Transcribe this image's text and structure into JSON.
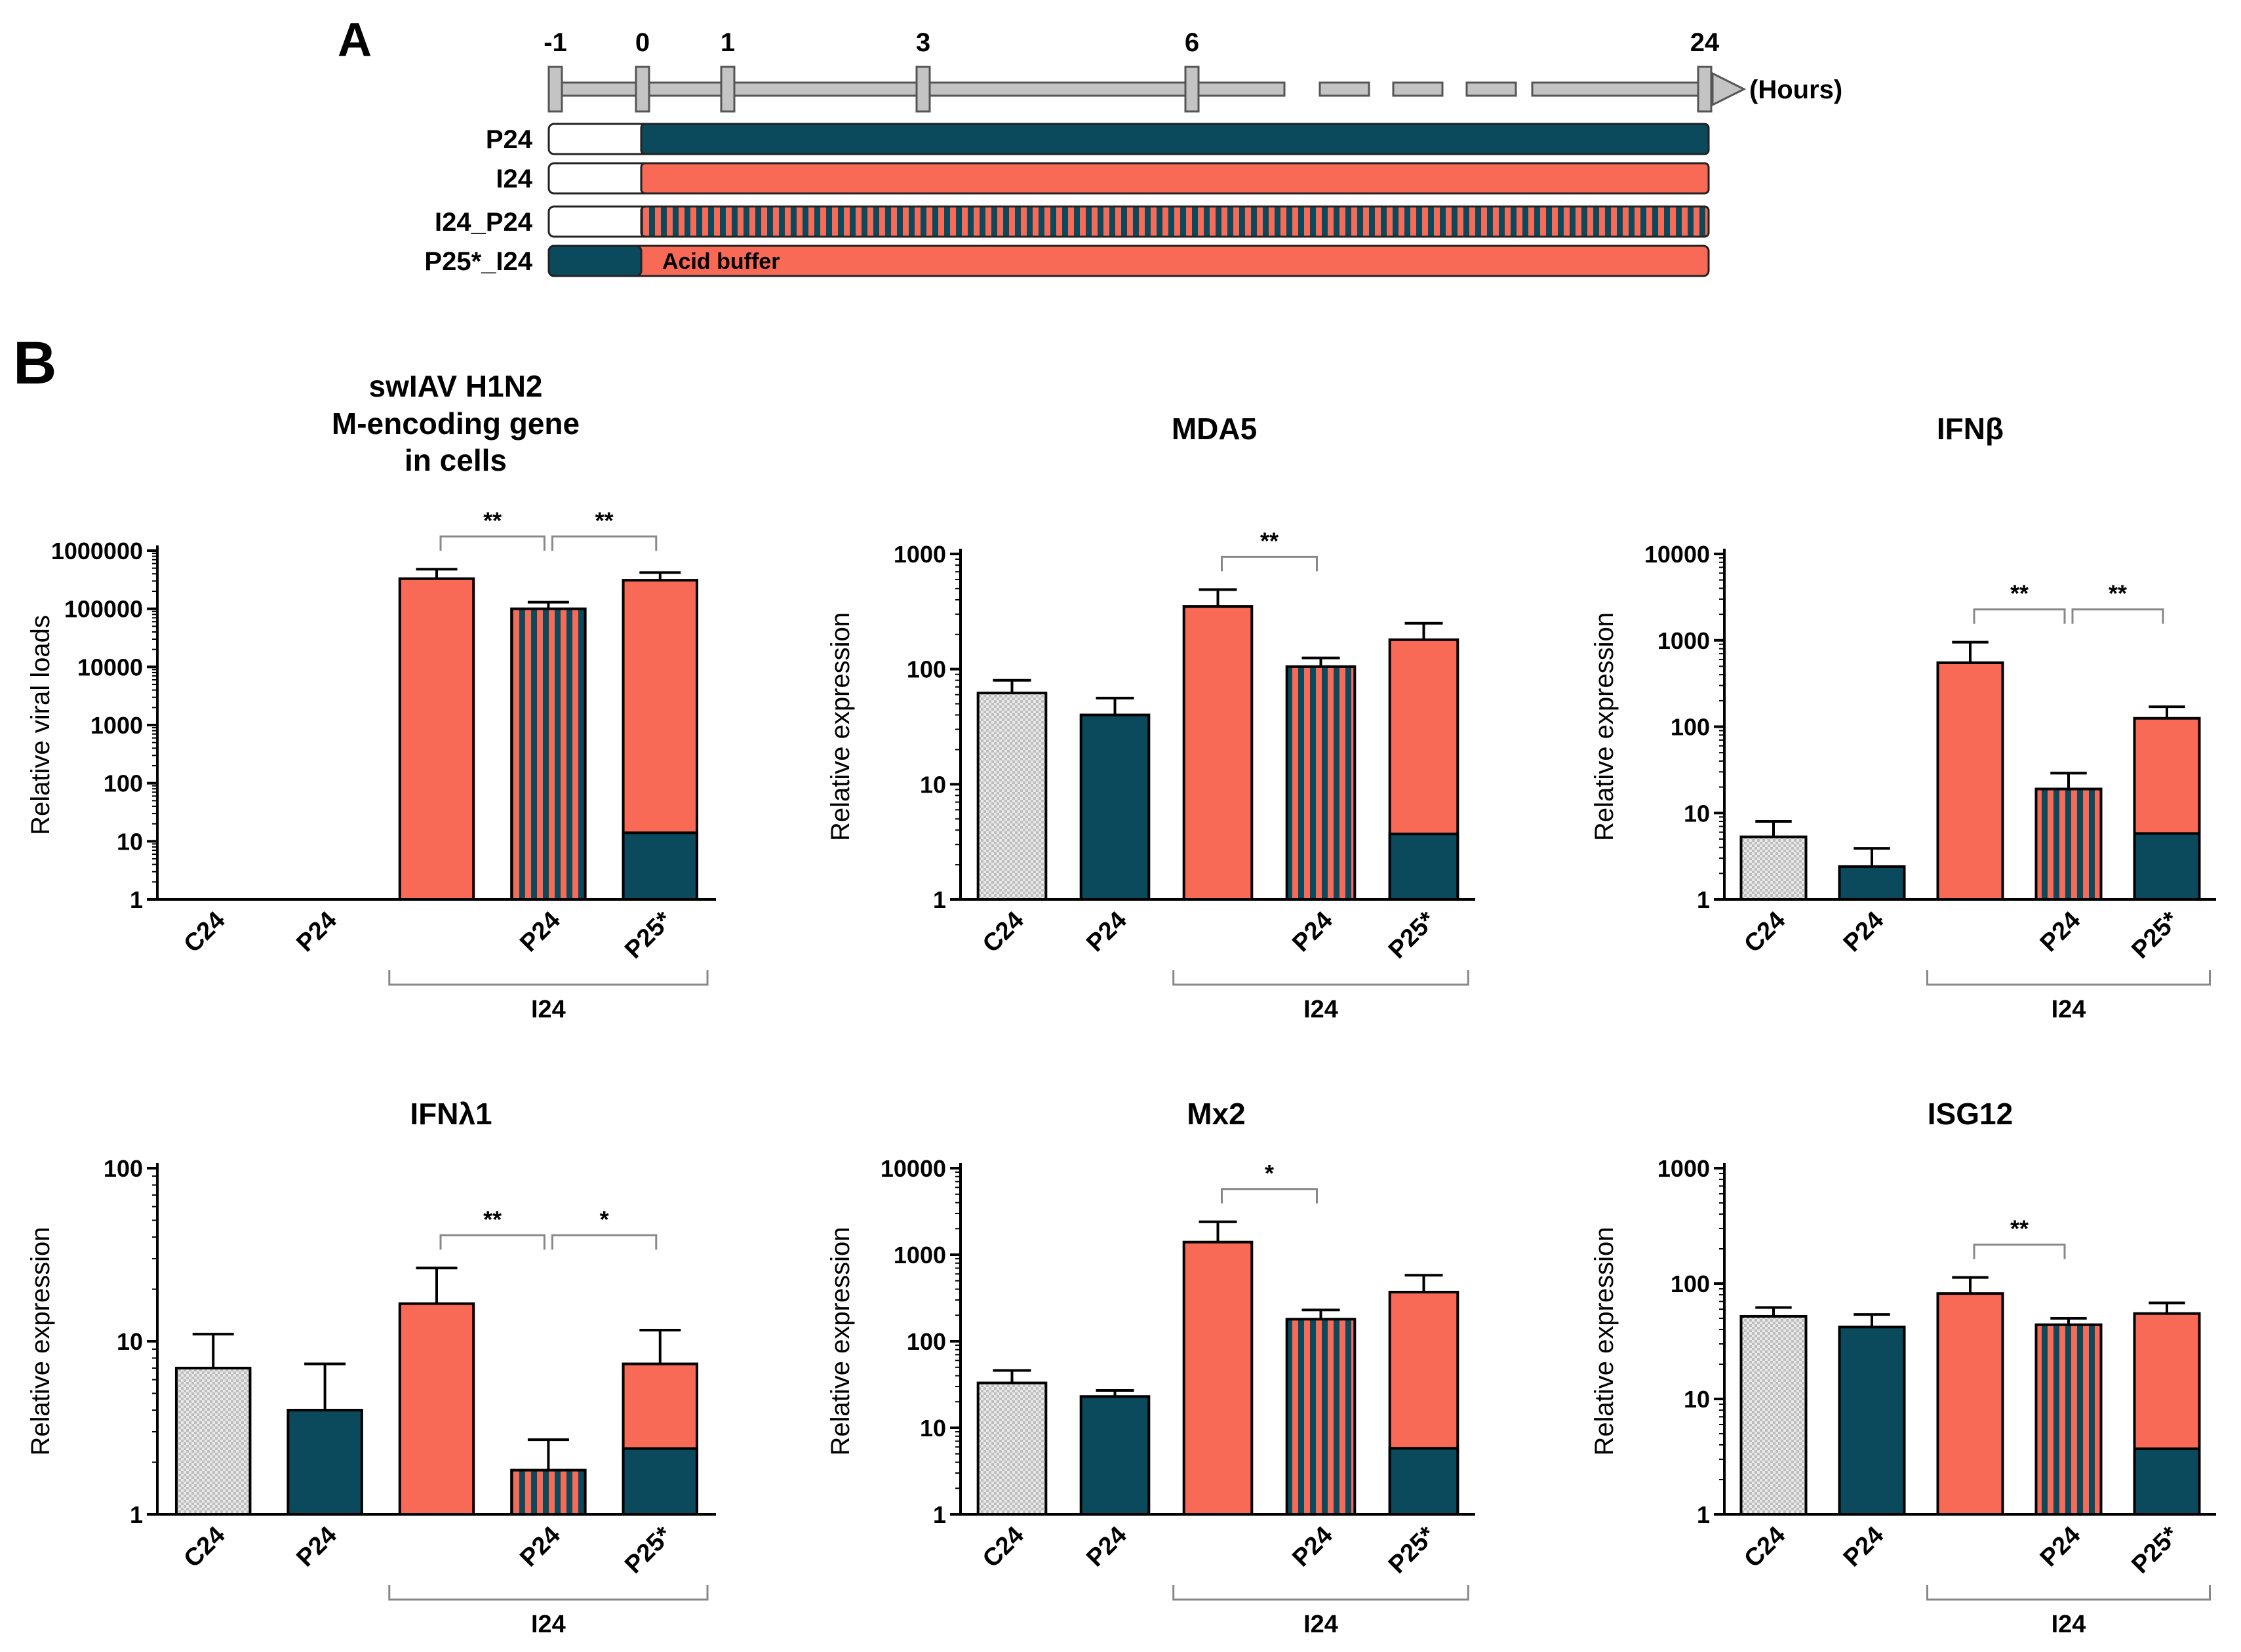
{
  "colors": {
    "dark": "#0b4a5c",
    "salmon": "#f86a55",
    "grey_fill": "#e3e3e3",
    "stroke": "#000000",
    "timeline": "#c4c4c4",
    "timeline_stroke": "#555555",
    "bracket": "#888888"
  },
  "panel_a": {
    "letter": "A",
    "unit": "(Hours)",
    "timepoints": [
      -1,
      0,
      1,
      3,
      6,
      24
    ],
    "time_labels": [
      "-1",
      "0",
      "1",
      "3",
      "6",
      "24"
    ],
    "rows": [
      {
        "label": "P24",
        "pattern": "dark"
      },
      {
        "label": "I24",
        "pattern": "salmon"
      },
      {
        "label": "I24_P24",
        "pattern": "striped"
      },
      {
        "label": "P25*_I24",
        "pattern": "dark_then_salmon",
        "note": "Acid buffer"
      }
    ]
  },
  "panel_b": {
    "letter": "B",
    "group_label": "I24"
  },
  "chart_data": [
    {
      "type": "bar",
      "yscale": "log",
      "title": [
        "swIAV H1N2",
        "M-encoding gene",
        "in cells"
      ],
      "ylabel": "Relative viral loads",
      "ylim": [
        1,
        1000000
      ],
      "yticks": [
        "1",
        "10",
        "100",
        "1000",
        "10000",
        "100000",
        "1000000"
      ],
      "categories": [
        "C24",
        "P24",
        "",
        "P24",
        "P25*"
      ],
      "group_label": "I24",
      "values": [
        null,
        null,
        330000,
        100000,
        310000
      ],
      "errors": [
        null,
        null,
        480000,
        130000,
        420000
      ],
      "inner": [
        null,
        null,
        null,
        null,
        14
      ],
      "styles": [
        "grey",
        "dark",
        "salmon",
        "striped",
        "salmon"
      ],
      "sig": [
        {
          "from": 2,
          "to": 3,
          "label": "**"
        },
        {
          "from": 3,
          "to": 4,
          "label": "**"
        }
      ]
    },
    {
      "type": "bar",
      "yscale": "log",
      "title": [
        "MDA5"
      ],
      "ylabel": "Relative expression",
      "ylim": [
        1,
        1000
      ],
      "yticks": [
        "1",
        "10",
        "100",
        "1000"
      ],
      "categories": [
        "C24",
        "P24",
        "",
        "P24",
        "P25*"
      ],
      "group_label": "I24",
      "values": [
        62,
        40,
        350,
        105,
        180
      ],
      "errors": [
        80,
        56,
        490,
        125,
        250
      ],
      "inner": [
        null,
        null,
        null,
        null,
        3.7
      ],
      "styles": [
        "grey",
        "dark",
        "salmon",
        "striped",
        "salmon"
      ],
      "sig": [
        {
          "from": 2,
          "to": 3,
          "label": "**"
        }
      ]
    },
    {
      "type": "bar",
      "yscale": "log",
      "title": [
        "IFNβ"
      ],
      "ylabel": "Relative expression",
      "ylim": [
        1,
        10000
      ],
      "yticks": [
        "1",
        "10",
        "100",
        "1000",
        "10000"
      ],
      "categories": [
        "C24",
        "P24",
        "",
        "P24",
        "P25*"
      ],
      "group_label": "I24",
      "values": [
        5.3,
        2.4,
        550,
        19,
        125
      ],
      "errors": [
        8,
        3.9,
        950,
        29,
        170
      ],
      "inner": [
        null,
        null,
        null,
        null,
        5.8
      ],
      "styles": [
        "grey",
        "dark",
        "salmon",
        "striped",
        "salmon"
      ],
      "sig": [
        {
          "from": 2,
          "to": 3,
          "label": "**"
        },
        {
          "from": 3,
          "to": 4,
          "label": "**"
        }
      ]
    },
    {
      "type": "bar",
      "yscale": "log",
      "title": [
        "IFNλ1"
      ],
      "ylabel": "Relative expression",
      "ylim": [
        1,
        100
      ],
      "yticks": [
        "1",
        "10",
        "100"
      ],
      "categories": [
        "C24",
        "P24",
        "",
        "P24",
        "P25*"
      ],
      "group_label": "I24",
      "values": [
        7,
        4,
        16.5,
        1.8,
        7.4
      ],
      "errors": [
        11,
        7.4,
        26.5,
        2.7,
        11.6
      ],
      "inner": [
        null,
        null,
        null,
        null,
        2.4
      ],
      "styles": [
        "grey",
        "dark",
        "salmon",
        "striped",
        "salmon"
      ],
      "sig": [
        {
          "from": 2,
          "to": 3,
          "label": "**"
        },
        {
          "from": 3,
          "to": 4,
          "label": "*"
        }
      ]
    },
    {
      "type": "bar",
      "yscale": "log",
      "title": [
        "Mx2"
      ],
      "ylabel": "Relative expression",
      "ylim": [
        1,
        10000
      ],
      "yticks": [
        "1",
        "10",
        "100",
        "1000",
        "10000"
      ],
      "categories": [
        "C24",
        "P24",
        "",
        "P24",
        "P25*"
      ],
      "group_label": "I24",
      "values": [
        33,
        23,
        1400,
        180,
        370
      ],
      "errors": [
        46,
        27,
        2400,
        230,
        580
      ],
      "inner": [
        null,
        null,
        null,
        null,
        5.8
      ],
      "styles": [
        "grey",
        "dark",
        "salmon",
        "striped",
        "salmon"
      ],
      "sig": [
        {
          "from": 2,
          "to": 3,
          "label": "*"
        }
      ]
    },
    {
      "type": "bar",
      "yscale": "log",
      "title": [
        "ISG12"
      ],
      "ylabel": "Relative expression",
      "ylim": [
        1,
        1000
      ],
      "yticks": [
        "1",
        "10",
        "100",
        "1000"
      ],
      "categories": [
        "C24",
        "P24",
        "",
        "P24",
        "P25*"
      ],
      "group_label": "I24",
      "values": [
        52,
        42,
        82,
        44,
        55
      ],
      "errors": [
        62,
        54,
        113,
        50,
        68
      ],
      "inner": [
        null,
        null,
        null,
        null,
        3.7
      ],
      "styles": [
        "grey",
        "dark",
        "salmon",
        "striped",
        "salmon"
      ],
      "sig": [
        {
          "from": 2,
          "to": 3,
          "label": "**"
        }
      ]
    }
  ]
}
